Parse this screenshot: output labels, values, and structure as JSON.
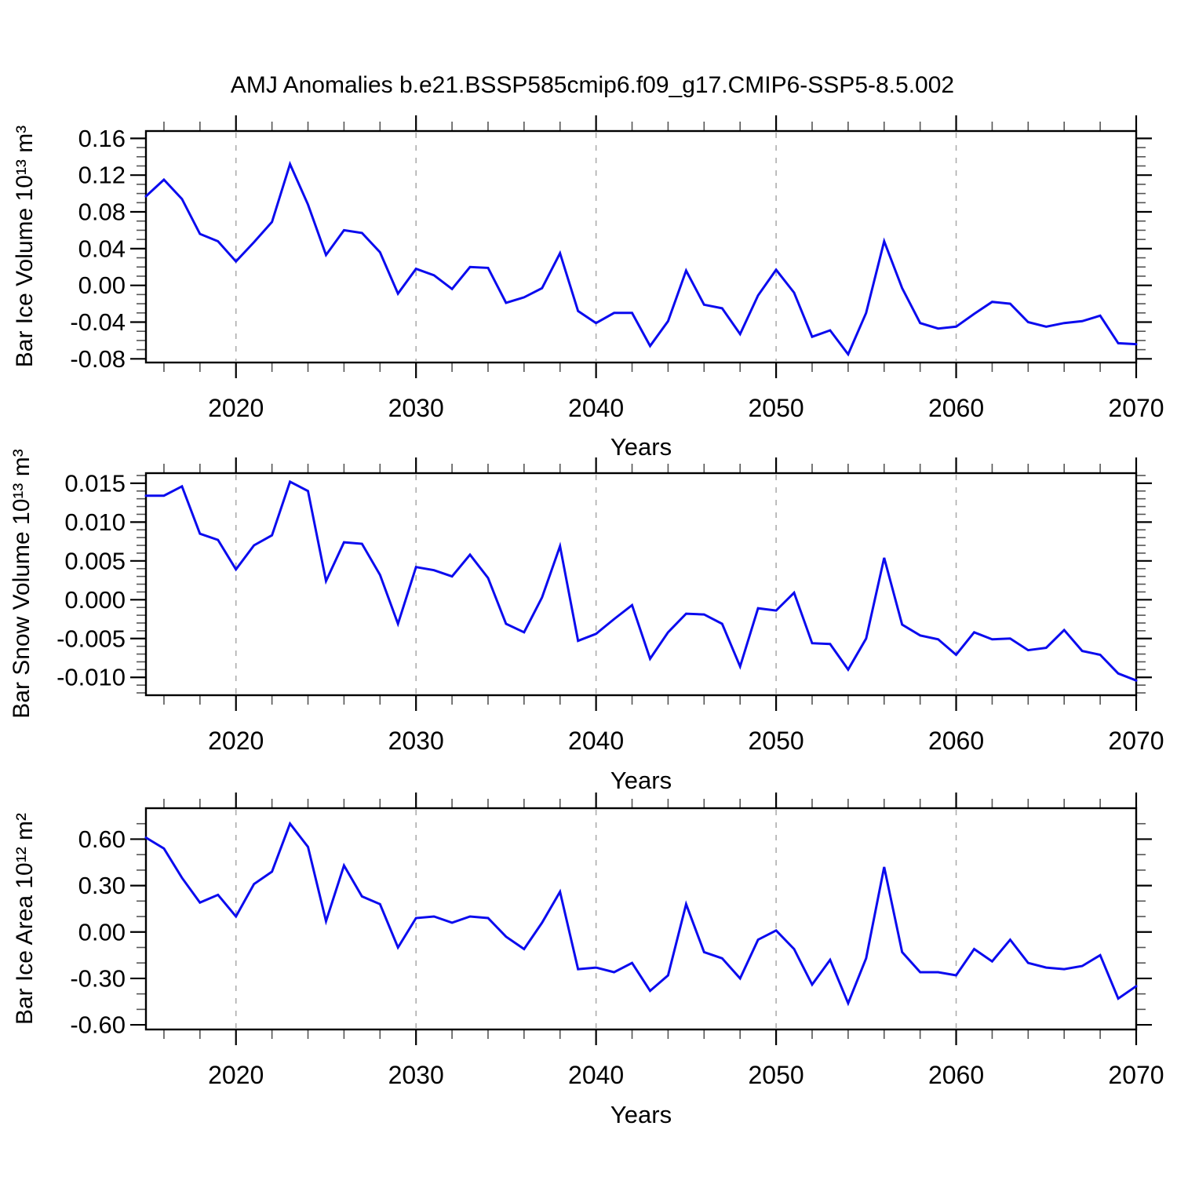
{
  "title": "AMJ Anomalies b.e21.BSSP585cmip6.f09_g17.CMIP6-SSP5-8.5.002",
  "line_color": "#0b0bee",
  "grid_color": "#a9a9a9",
  "axis_color": "#000000",
  "years": [
    2015,
    2016,
    2017,
    2018,
    2019,
    2020,
    2021,
    2022,
    2023,
    2024,
    2025,
    2026,
    2027,
    2028,
    2029,
    2030,
    2031,
    2032,
    2033,
    2034,
    2035,
    2036,
    2037,
    2038,
    2039,
    2040,
    2041,
    2042,
    2043,
    2044,
    2045,
    2046,
    2047,
    2048,
    2049,
    2050,
    2051,
    2052,
    2053,
    2054,
    2055,
    2056,
    2057,
    2058,
    2059,
    2060,
    2061,
    2062,
    2063,
    2064,
    2065,
    2066,
    2067,
    2068,
    2069,
    2070
  ],
  "x_axis": {
    "label": "Years",
    "range": [
      2015,
      2070
    ],
    "major_ticks": [
      2020,
      2030,
      2040,
      2050,
      2060,
      2070
    ],
    "tick_labels": [
      "2020",
      "2030",
      "2040",
      "2050",
      "2060",
      "2070"
    ],
    "minor_step": 2,
    "gridlines": [
      2020,
      2030,
      2040,
      2050,
      2060
    ]
  },
  "chart_data": [
    {
      "type": "line",
      "ylabel": "Bar Ice Volume 10¹³ m³",
      "xlabel": "Years",
      "ylim": [
        -0.084,
        0.168
      ],
      "yticks": [
        0.16,
        0.12,
        0.08,
        0.04,
        0.0,
        -0.04,
        -0.08
      ],
      "ytick_labels": [
        "0.16",
        "0.12",
        "0.08",
        "0.04",
        "0.00",
        "-0.04",
        "-0.08"
      ],
      "y_minor_step": 0.01,
      "grid": "x-dashed",
      "legend": "none",
      "values": [
        0.097,
        0.115,
        0.094,
        0.056,
        0.048,
        0.026,
        0.047,
        0.069,
        0.132,
        0.088,
        0.033,
        0.06,
        0.057,
        0.036,
        -0.009,
        0.018,
        0.011,
        -0.004,
        0.02,
        0.019,
        -0.019,
        -0.013,
        -0.003,
        0.035,
        -0.028,
        -0.041,
        -0.03,
        -0.03,
        -0.066,
        -0.039,
        0.016,
        -0.021,
        -0.025,
        -0.053,
        -0.011,
        0.017,
        -0.008,
        -0.056,
        -0.049,
        -0.075,
        -0.03,
        0.048,
        -0.003,
        -0.041,
        -0.047,
        -0.045,
        -0.031,
        -0.018,
        -0.02,
        -0.04,
        -0.045,
        -0.041,
        -0.039,
        -0.033,
        -0.063,
        -0.064
      ]
    },
    {
      "type": "line",
      "ylabel": "Bar Snow Volume 10¹³ m³",
      "xlabel": "Years",
      "ylim": [
        -0.0123,
        0.0163
      ],
      "yticks": [
        0.015,
        0.01,
        0.005,
        0.0,
        -0.005,
        -0.01
      ],
      "ytick_labels": [
        "0.015",
        "0.010",
        "0.005",
        "0.000",
        "-0.005",
        "-0.010"
      ],
      "y_minor_step": 0.001,
      "grid": "x-dashed",
      "legend": "none",
      "values": [
        0.0134,
        0.0134,
        0.0146,
        0.0085,
        0.0077,
        0.0039,
        0.007,
        0.0083,
        0.0152,
        0.014,
        0.0024,
        0.0074,
        0.0072,
        0.0032,
        -0.0031,
        0.0042,
        0.0038,
        0.003,
        0.0058,
        0.0028,
        -0.0031,
        -0.0042,
        0.0003,
        0.0069,
        -0.0053,
        -0.0044,
        -0.0025,
        -0.0007,
        -0.0076,
        -0.0042,
        -0.0018,
        -0.0019,
        -0.0031,
        -0.0086,
        -0.0011,
        -0.0014,
        0.0009,
        -0.0056,
        -0.0057,
        -0.009,
        -0.005,
        0.0054,
        -0.0032,
        -0.0046,
        -0.0051,
        -0.0071,
        -0.0042,
        -0.0051,
        -0.005,
        -0.0065,
        -0.0062,
        -0.0039,
        -0.0066,
        -0.0071,
        -0.0095,
        -0.0104
      ]
    },
    {
      "type": "line",
      "ylabel": "Bar Ice Area 10¹² m²",
      "xlabel": "Years",
      "ylim": [
        -0.63,
        0.8
      ],
      "yticks": [
        0.6,
        0.3,
        0.0,
        -0.3,
        -0.6
      ],
      "ytick_labels": [
        "0.60",
        "0.30",
        "0.00",
        "-0.30",
        "-0.60"
      ],
      "y_minor_step": 0.1,
      "grid": "x-dashed",
      "legend": "none",
      "values": [
        0.61,
        0.54,
        0.35,
        0.19,
        0.24,
        0.1,
        0.31,
        0.39,
        0.7,
        0.55,
        0.07,
        0.43,
        0.23,
        0.18,
        -0.1,
        0.09,
        0.1,
        0.06,
        0.1,
        0.09,
        -0.03,
        -0.11,
        0.06,
        0.26,
        -0.24,
        -0.23,
        -0.26,
        -0.2,
        -0.38,
        -0.28,
        0.18,
        -0.13,
        -0.17,
        -0.3,
        -0.05,
        0.01,
        -0.11,
        -0.34,
        -0.18,
        -0.46,
        -0.17,
        0.42,
        -0.13,
        -0.26,
        -0.26,
        -0.28,
        -0.11,
        -0.19,
        -0.05,
        -0.2,
        -0.23,
        -0.24,
        -0.22,
        -0.15,
        -0.43,
        -0.35
      ]
    }
  ]
}
